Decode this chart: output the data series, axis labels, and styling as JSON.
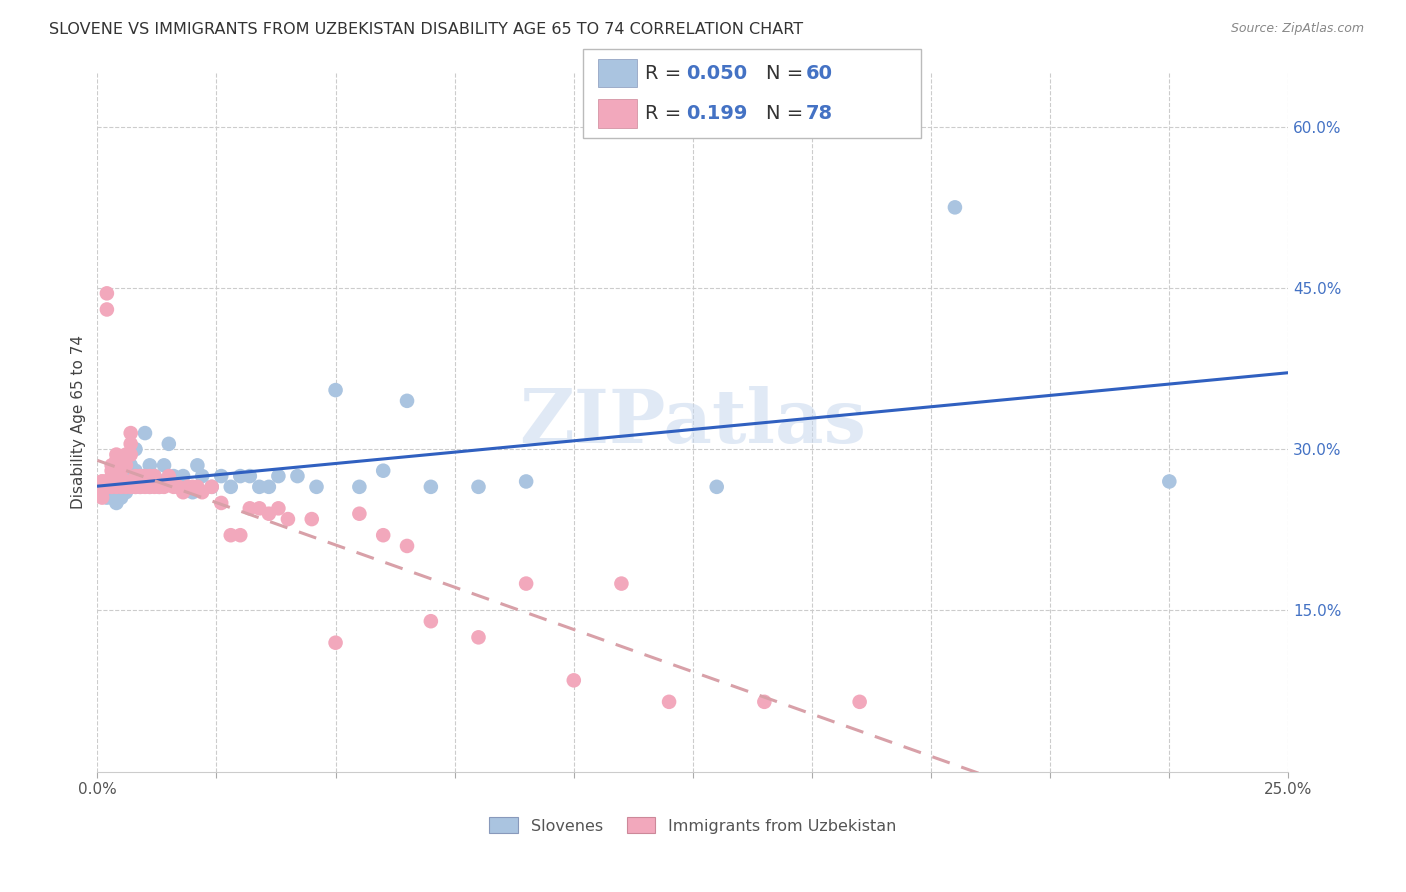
{
  "title": "SLOVENE VS IMMIGRANTS FROM UZBEKISTAN DISABILITY AGE 65 TO 74 CORRELATION CHART",
  "source": "Source: ZipAtlas.com",
  "ylabel": "Disability Age 65 to 74",
  "xlim": [
    0.0,
    0.25
  ],
  "ylim": [
    0.0,
    0.65
  ],
  "color_slovene": "#aac4e0",
  "color_uzbek": "#f2a8bc",
  "color_line_slovene": "#3060c0",
  "color_line_uzbek": "#d8a0a8",
  "color_legend_values": "#4472c4",
  "watermark": "ZIPatlas",
  "slovene_x": [
    0.001,
    0.001,
    0.002,
    0.002,
    0.003,
    0.003,
    0.003,
    0.004,
    0.004,
    0.004,
    0.005,
    0.005,
    0.005,
    0.006,
    0.006,
    0.006,
    0.007,
    0.007,
    0.008,
    0.008,
    0.008,
    0.009,
    0.009,
    0.01,
    0.01,
    0.011,
    0.011,
    0.012,
    0.013,
    0.013,
    0.014,
    0.014,
    0.015,
    0.016,
    0.017,
    0.018,
    0.019,
    0.02,
    0.021,
    0.022,
    0.024,
    0.026,
    0.028,
    0.03,
    0.032,
    0.034,
    0.036,
    0.038,
    0.042,
    0.046,
    0.05,
    0.055,
    0.06,
    0.065,
    0.07,
    0.08,
    0.09,
    0.13,
    0.18,
    0.225
  ],
  "slovene_y": [
    0.265,
    0.26,
    0.265,
    0.255,
    0.265,
    0.26,
    0.255,
    0.27,
    0.265,
    0.25,
    0.275,
    0.265,
    0.255,
    0.28,
    0.265,
    0.26,
    0.285,
    0.27,
    0.3,
    0.28,
    0.265,
    0.27,
    0.265,
    0.275,
    0.315,
    0.285,
    0.265,
    0.275,
    0.265,
    0.27,
    0.285,
    0.27,
    0.305,
    0.275,
    0.265,
    0.275,
    0.265,
    0.26,
    0.285,
    0.275,
    0.265,
    0.275,
    0.265,
    0.275,
    0.275,
    0.265,
    0.265,
    0.275,
    0.275,
    0.265,
    0.355,
    0.265,
    0.28,
    0.345,
    0.265,
    0.265,
    0.27,
    0.265,
    0.525,
    0.27
  ],
  "uzbek_x": [
    0.001,
    0.001,
    0.001,
    0.001,
    0.001,
    0.001,
    0.002,
    0.002,
    0.002,
    0.002,
    0.002,
    0.002,
    0.003,
    0.003,
    0.003,
    0.003,
    0.003,
    0.004,
    0.004,
    0.004,
    0.004,
    0.004,
    0.005,
    0.005,
    0.005,
    0.005,
    0.006,
    0.006,
    0.006,
    0.006,
    0.007,
    0.007,
    0.007,
    0.007,
    0.008,
    0.008,
    0.008,
    0.009,
    0.009,
    0.009,
    0.01,
    0.01,
    0.011,
    0.011,
    0.012,
    0.012,
    0.013,
    0.014,
    0.015,
    0.016,
    0.017,
    0.018,
    0.019,
    0.02,
    0.021,
    0.022,
    0.024,
    0.026,
    0.028,
    0.03,
    0.032,
    0.034,
    0.036,
    0.038,
    0.04,
    0.045,
    0.05,
    0.055,
    0.06,
    0.065,
    0.07,
    0.08,
    0.09,
    0.1,
    0.11,
    0.12,
    0.14,
    0.16
  ],
  "uzbek_y": [
    0.265,
    0.27,
    0.265,
    0.27,
    0.26,
    0.255,
    0.27,
    0.265,
    0.43,
    0.445,
    0.265,
    0.27,
    0.275,
    0.285,
    0.28,
    0.27,
    0.265,
    0.28,
    0.29,
    0.295,
    0.27,
    0.265,
    0.29,
    0.28,
    0.265,
    0.27,
    0.295,
    0.285,
    0.27,
    0.265,
    0.305,
    0.315,
    0.295,
    0.265,
    0.275,
    0.27,
    0.265,
    0.275,
    0.27,
    0.265,
    0.275,
    0.265,
    0.275,
    0.265,
    0.275,
    0.265,
    0.265,
    0.265,
    0.275,
    0.265,
    0.265,
    0.26,
    0.265,
    0.265,
    0.265,
    0.26,
    0.265,
    0.25,
    0.22,
    0.22,
    0.245,
    0.245,
    0.24,
    0.245,
    0.235,
    0.235,
    0.12,
    0.24,
    0.22,
    0.21,
    0.14,
    0.125,
    0.175,
    0.085,
    0.175,
    0.065,
    0.065,
    0.065
  ]
}
